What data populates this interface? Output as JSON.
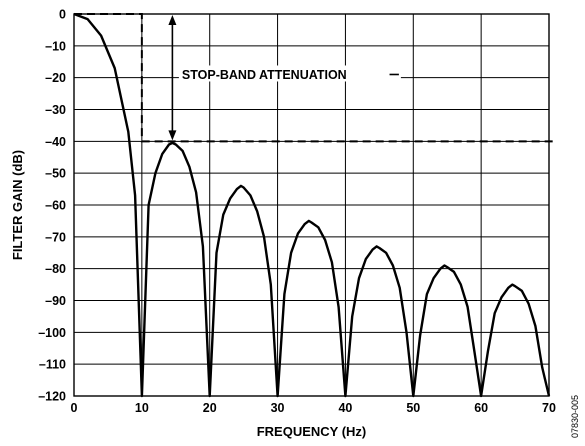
{
  "chart_data": {
    "type": "line",
    "xlabel": "FREQUENCY (Hz)",
    "ylabel": "FILTER GAIN (dB)",
    "xlim": [
      0,
      70
    ],
    "ylim": [
      -120,
      0
    ],
    "x_ticks": [
      0,
      10,
      20,
      30,
      40,
      50,
      60,
      70
    ],
    "y_ticks": [
      0,
      -10,
      -20,
      -30,
      -40,
      -50,
      -60,
      -70,
      -80,
      -90,
      -100,
      -110,
      -120
    ],
    "x_tick_labels": [
      "0",
      "10",
      "20",
      "30",
      "40",
      "50",
      "60",
      "70"
    ],
    "y_tick_labels": [
      "0",
      "–10",
      "–20",
      "–30",
      "–40",
      "–50",
      "–60",
      "–70",
      "–80",
      "–90",
      "–100",
      "–110",
      "–120"
    ],
    "grid": true,
    "series": [
      {
        "x": [
          0,
          2,
          4,
          6,
          8,
          9,
          10,
          11,
          12,
          13,
          14,
          14.5,
          15,
          16,
          17,
          18,
          19,
          20,
          21,
          22,
          23,
          24,
          24.6,
          25,
          26,
          27,
          28,
          29,
          30,
          31,
          32,
          33,
          34,
          34.6,
          35,
          36,
          37,
          38,
          39,
          40,
          41,
          42,
          43,
          44,
          44.6,
          45,
          46,
          47,
          48,
          49,
          50,
          51,
          52,
          53,
          54,
          54.6,
          55,
          56,
          57,
          58,
          59,
          60,
          61,
          62,
          63,
          64,
          64.6,
          65,
          66,
          67,
          68,
          69,
          70
        ],
        "y": [
          0,
          -1.6,
          -6.8,
          -17,
          -37,
          -57,
          -120,
          -60,
          -50,
          -44,
          -41,
          -40.5,
          -41,
          -43,
          -48,
          -56,
          -73,
          -120,
          -75,
          -63,
          -58,
          -55,
          -54,
          -54.5,
          -57,
          -62,
          -70,
          -85,
          -120,
          -88,
          -75,
          -69,
          -66,
          -65,
          -65.5,
          -67,
          -71,
          -78,
          -92,
          -120,
          -95,
          -83,
          -77,
          -74,
          -73,
          -73.5,
          -75,
          -79,
          -86,
          -100,
          -120,
          -101,
          -88,
          -83,
          -80,
          -79,
          -79.5,
          -81,
          -85,
          -92,
          -106,
          -120,
          -106,
          -94,
          -89,
          -86,
          -85,
          -85.5,
          -87,
          -91,
          -98,
          -111,
          -120
        ]
      }
    ],
    "stopband_edge_hz": 10,
    "stopband_attenuation_db": -40,
    "annotations": [
      {
        "text": "STOP-BAND ATTENUATION"
      }
    ],
    "figure_id": "07830-005"
  }
}
